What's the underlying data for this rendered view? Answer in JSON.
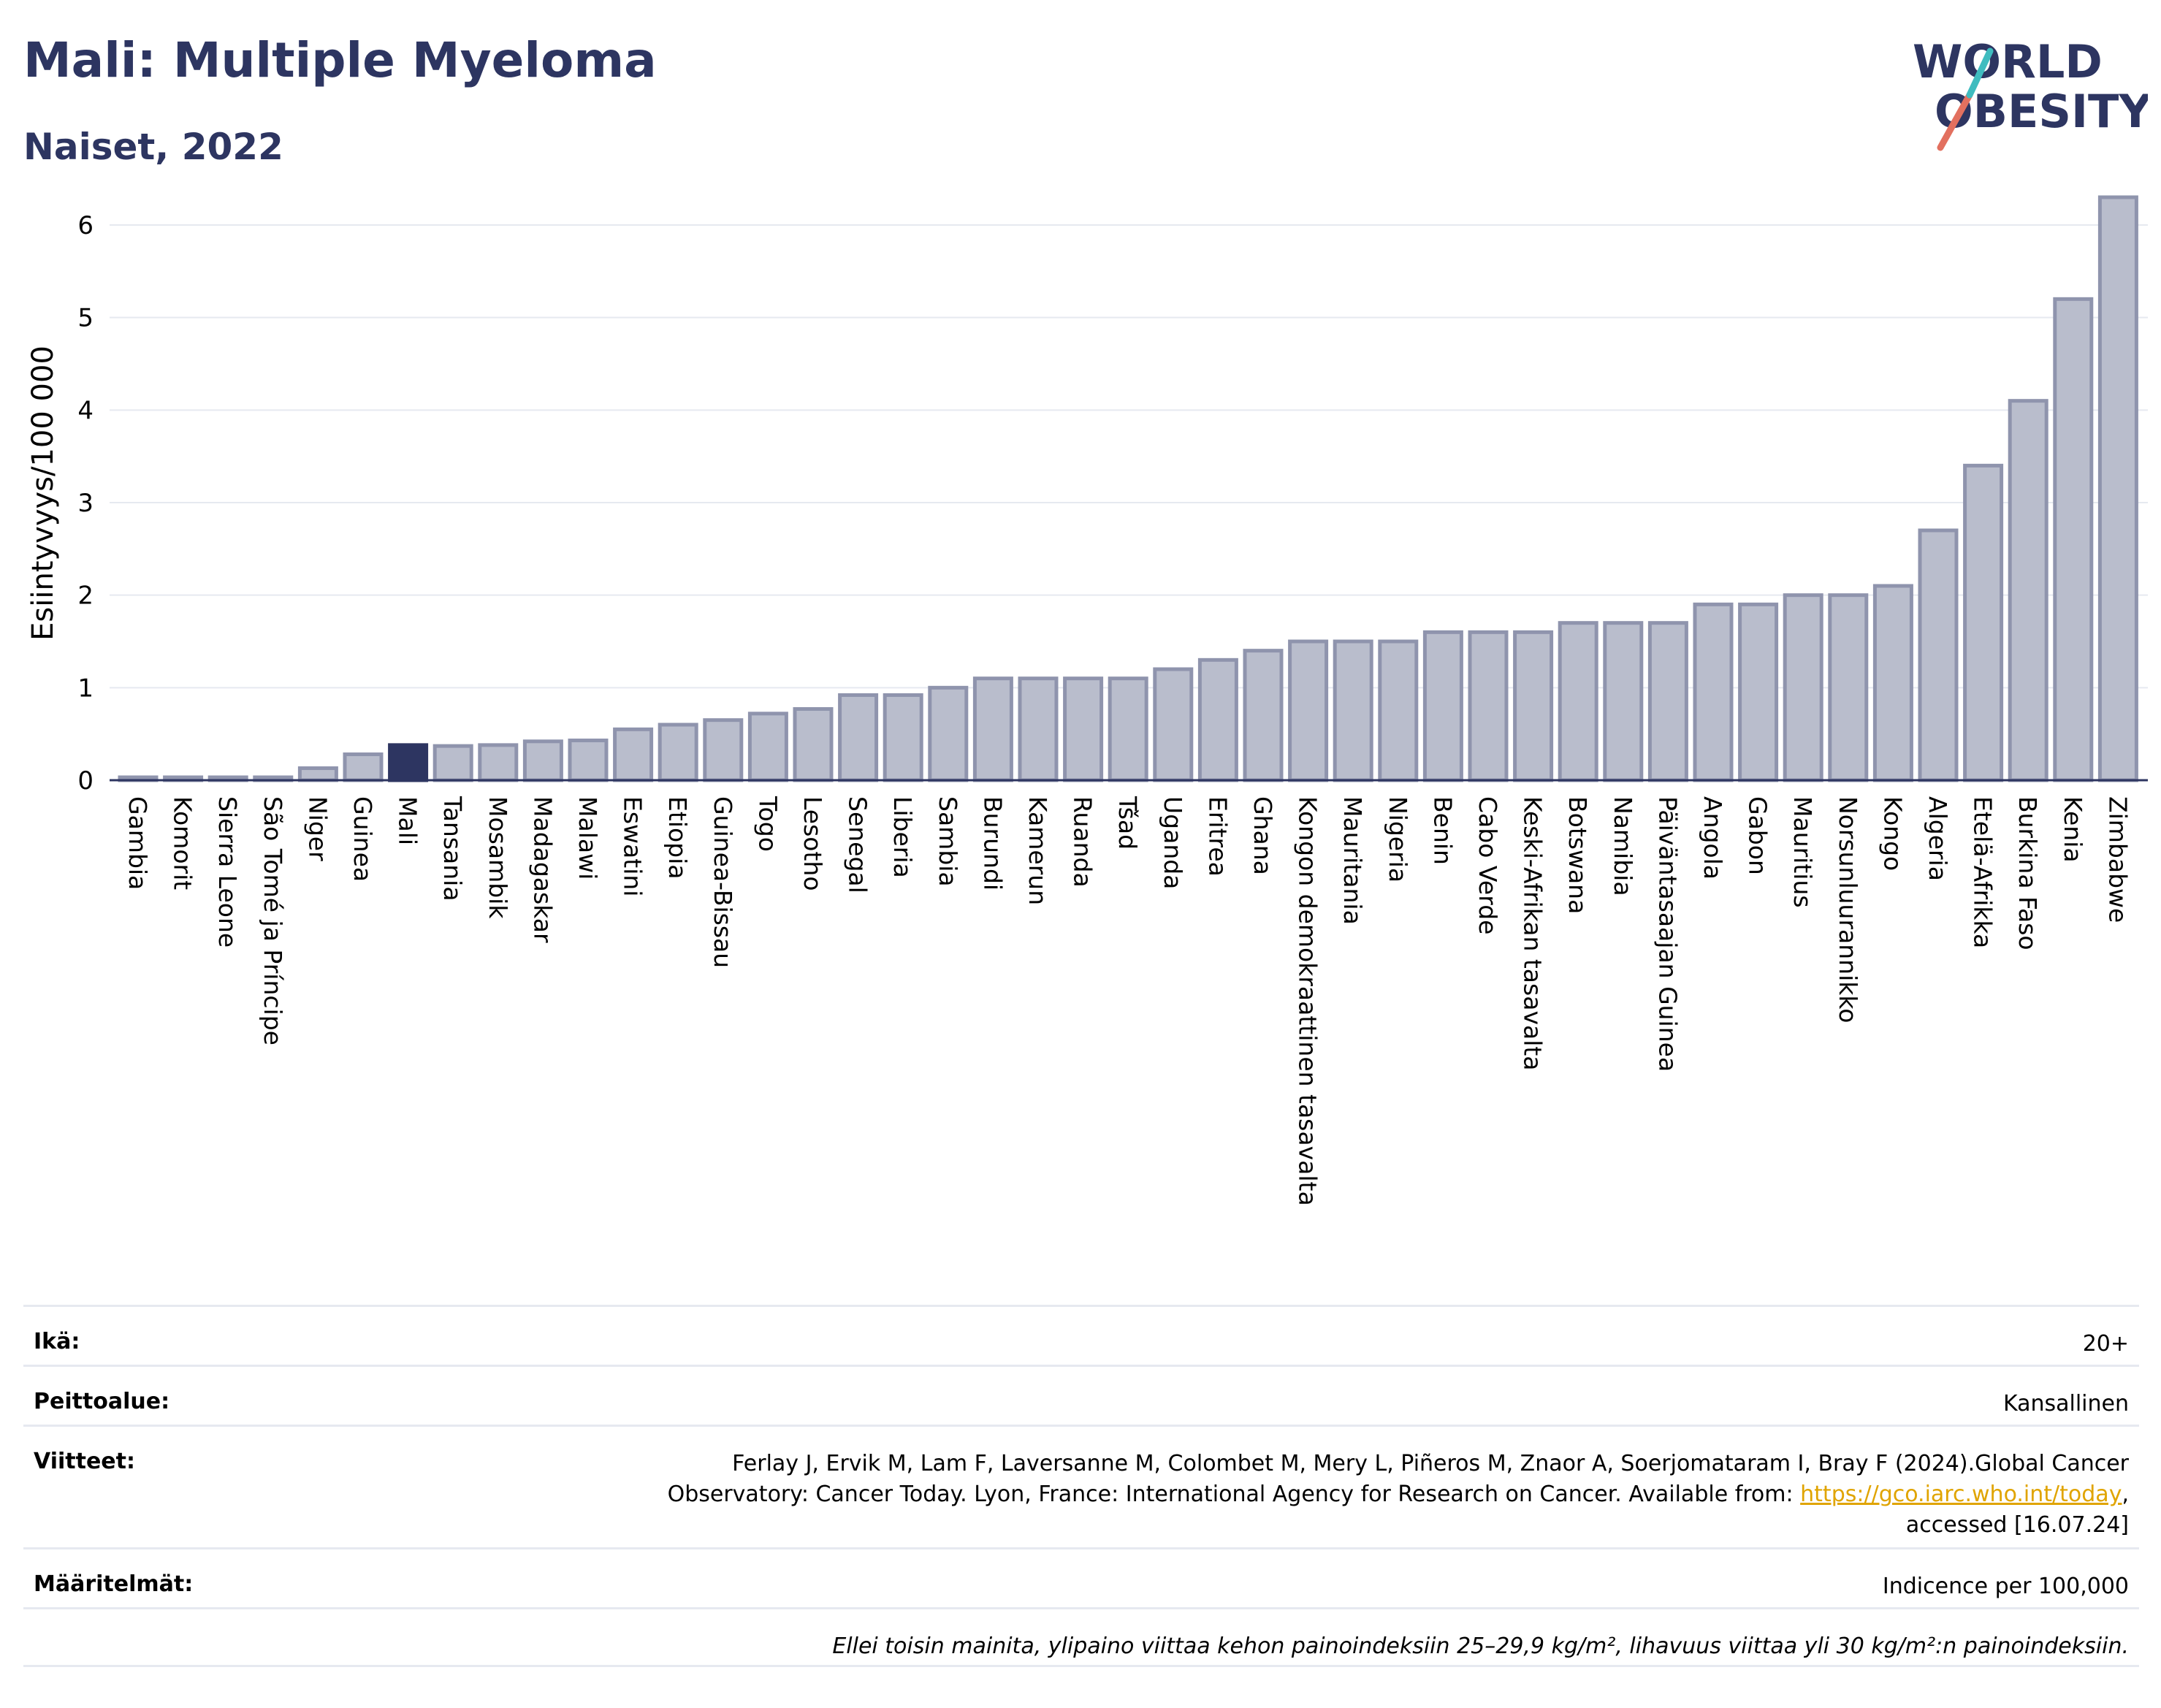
{
  "title": "Mali: Multiple Myeloma",
  "subtitle": "Naiset, 2022",
  "logo": {
    "line1": "WORLD",
    "line2": "OBESITY"
  },
  "colors": {
    "bar": "#b9bdcc",
    "bar_border": "#8f94ad",
    "highlight": "#2d3561",
    "title": "#2d3561"
  },
  "chart_data": {
    "type": "bar",
    "ylabel": "Esiintyvyys/100 000",
    "xlabel": "",
    "ylim": [
      0,
      6.5
    ],
    "yticks": [
      "0",
      "1",
      "2",
      "3",
      "4",
      "5",
      "6"
    ],
    "grid": true,
    "highlight": "Mali",
    "categories": [
      "Gambia",
      "Komorit",
      "Sierra Leone",
      "São Tomé ja Príncipe",
      "Niger",
      "Guinea",
      "Mali",
      "Tansania",
      "Mosambik",
      "Madagaskar",
      "Malawi",
      "Eswatini",
      "Etiopia",
      "Guinea-Bissau",
      "Togo",
      "Lesotho",
      "Senegal",
      "Liberia",
      "Sambia",
      "Burundi",
      "Kamerun",
      "Ruanda",
      "Tšad",
      "Uganda",
      "Eritrea",
      "Ghana",
      "Kongon demokraattinen tasavalta",
      "Mauritania",
      "Nigeria",
      "Benin",
      "Cabo Verde",
      "Keski-Afrikan tasavalta",
      "Botswana",
      "Namibia",
      "Päiväntasaajan Guinea",
      "Angola",
      "Gabon",
      "Mauritius",
      "Norsunluurannikko",
      "Kongo",
      "Algeria",
      "Etelä-Afrikka",
      "Burkina Faso",
      "Kenia",
      "Zimbabwe"
    ],
    "values": [
      0.02,
      0.02,
      0.02,
      0.02,
      0.13,
      0.28,
      0.38,
      0.37,
      0.38,
      0.42,
      0.43,
      0.55,
      0.6,
      0.65,
      0.72,
      0.77,
      0.92,
      0.92,
      1.0,
      1.1,
      1.1,
      1.1,
      1.1,
      1.2,
      1.3,
      1.4,
      1.5,
      1.5,
      1.5,
      1.6,
      1.6,
      1.6,
      1.7,
      1.7,
      1.7,
      1.9,
      1.9,
      2.0,
      2.0,
      2.1,
      2.7,
      3.4,
      4.1,
      5.2,
      6.3
    ]
  },
  "info": {
    "age_label": "Ikä:",
    "age_value": "20+",
    "coverage_label": "Peittoalue:",
    "coverage_value": "Kansallinen",
    "refs_label": "Viitteet:",
    "refs_line1": "Ferlay J, Ervik M, Lam F, Laversanne M, Colombet M, Mery L, Piñeros M, Znaor A, Soerjomataram I, Bray F (2024).Global Cancer",
    "refs_line2": "Observatory: Cancer Today. Lyon, France: International Agency for Research on Cancer. Available from: ",
    "refs_link": "https://gco.iarc.who.int/today",
    "refs_line2_end": ",",
    "refs_line3": "accessed [16.07.24]",
    "def_label": "Määritelmät:",
    "def_value": "Indicence per 100,000",
    "note": "Ellei toisin mainita, ylipaino viittaa kehon painoindeksiin 25–29,9 kg/m², lihavuus viittaa yli 30 kg/m²:n painoindeksiin."
  }
}
